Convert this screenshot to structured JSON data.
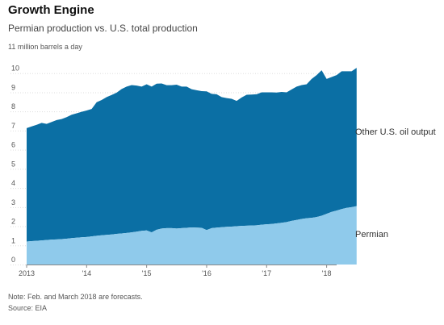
{
  "header": {
    "title": "Growth Engine",
    "subtitle": "Permian production vs. U.S. total production",
    "unit_label": "11 million barrels a day"
  },
  "footer": {
    "note": "Note: Feb. and March 2018 are forecasts.",
    "source": "Source: EIA"
  },
  "chart_data": {
    "type": "area",
    "title": "Growth Engine",
    "subtitle": "Permian production vs. U.S. total production",
    "ylabel": "11 million barrels a day",
    "ylim": [
      0,
      11
    ],
    "yticks": [
      0,
      1,
      2,
      3,
      4,
      5,
      6,
      7,
      8,
      9,
      10
    ],
    "x_start": "2013-01",
    "x_end": "2018-03",
    "x_tick_labels": [
      "2013",
      "'14",
      "'15",
      "'16",
      "'17",
      "'18"
    ],
    "x_tick_years": [
      2013,
      2014,
      2015,
      2016,
      2017,
      2018
    ],
    "stacked": true,
    "grid": true,
    "legend_position": "right",
    "colors": {
      "other": "#0b6fa4",
      "permian": "#8fcaeb"
    },
    "series": [
      {
        "name": "Permian",
        "key": "permian",
        "values": [
          1.2,
          1.22,
          1.24,
          1.26,
          1.28,
          1.3,
          1.31,
          1.33,
          1.35,
          1.38,
          1.4,
          1.42,
          1.44,
          1.47,
          1.5,
          1.53,
          1.55,
          1.57,
          1.6,
          1.62,
          1.65,
          1.68,
          1.72,
          1.76,
          1.78,
          1.68,
          1.82,
          1.88,
          1.9,
          1.9,
          1.88,
          1.9,
          1.92,
          1.94,
          1.93,
          1.92,
          1.8,
          1.9,
          1.93,
          1.95,
          1.97,
          1.98,
          2.0,
          2.02,
          2.03,
          2.04,
          2.05,
          2.08,
          2.1,
          2.12,
          2.15,
          2.18,
          2.22,
          2.28,
          2.33,
          2.38,
          2.42,
          2.44,
          2.48,
          2.55,
          2.65,
          2.75,
          2.82,
          2.9,
          2.96,
          3.0,
          3.05
        ]
      },
      {
        "name": "Other U.S. oil output",
        "key": "other",
        "values": [
          5.93,
          6.0,
          6.06,
          6.14,
          6.07,
          6.15,
          6.24,
          6.27,
          6.35,
          6.45,
          6.5,
          6.56,
          6.61,
          6.66,
          6.98,
          7.07,
          7.2,
          7.29,
          7.38,
          7.55,
          7.65,
          7.7,
          7.63,
          7.54,
          7.64,
          7.62,
          7.63,
          7.58,
          7.47,
          7.47,
          7.52,
          7.4,
          7.38,
          7.22,
          7.18,
          7.14,
          7.25,
          7.02,
          6.97,
          6.8,
          6.73,
          6.68,
          6.55,
          6.71,
          6.84,
          6.84,
          6.85,
          6.92,
          6.9,
          6.88,
          6.84,
          6.84,
          6.78,
          6.87,
          6.97,
          7.0,
          7.0,
          7.26,
          7.42,
          7.6,
          7.05,
          7.05,
          7.08,
          7.2,
          7.14,
          7.1,
          7.23
        ]
      }
    ]
  }
}
